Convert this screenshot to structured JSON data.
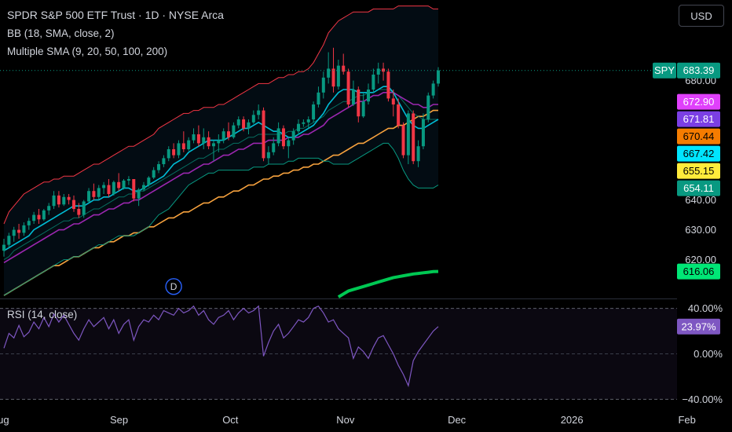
{
  "header": {
    "title": "SPDR S&P 500 ETF Trust · 1D · NYSE Arca",
    "bb_legend": "BB (18, SMA, close, 2)",
    "sma_legend": "Multiple SMA (9, 20, 50, 100, 200)",
    "rsi_legend": "RSI (14, close)",
    "currency": "USD"
  },
  "colors": {
    "up": "#089981",
    "down": "#f23645",
    "bb_band": "#f23645",
    "bb_basis": "#089981",
    "sma9": "#00bcd4",
    "sma20": "#9c27b0",
    "sma50": "#f7a23e",
    "sma100": "#089981",
    "sma200": "#00c853",
    "rsi": "#7e57c2"
  },
  "chart_data": {
    "type": "candlestick",
    "symbol": "SPY",
    "price_axis": {
      "range": [
        607,
        707
      ],
      "ticks": [
        680,
        640,
        630,
        620
      ],
      "tick_labels": [
        "680.00",
        "640.00",
        "630.00",
        "620.00"
      ]
    },
    "time_axis": {
      "labels": [
        "Aug",
        "Sep",
        "Oct",
        "Nov",
        "Dec",
        "2026",
        "Feb"
      ],
      "label_days": [
        0,
        31,
        61,
        92,
        122,
        153,
        184
      ],
      "last_candle_day": 117
    },
    "badges": [
      {
        "label": "SPY",
        "value": "683.39",
        "price": 683.39,
        "color": "#089981"
      },
      {
        "label": "",
        "value": "672.90",
        "price": 672.9,
        "color": "#e040fb"
      },
      {
        "label": "",
        "value": "671.81",
        "price": 671.81,
        "color": "#7b3fe4"
      },
      {
        "label": "",
        "value": "670.44",
        "price": 670.44,
        "color": "#f57c00"
      },
      {
        "label": "",
        "value": "667.42",
        "price": 667.42,
        "color": "#00e5ff"
      },
      {
        "label": "",
        "value": "655.15",
        "price": 655.15,
        "color": "#ffeb3b"
      },
      {
        "label": "",
        "value": "654.11",
        "price": 654.11,
        "color": "#089981"
      },
      {
        "label": "",
        "value": "616.06",
        "price": 616.06,
        "color": "#00e676"
      }
    ],
    "candles": [
      [
        623.0,
        627.0,
        621.0,
        625.0
      ],
      [
        625.0,
        629.0,
        624.0,
        628.0
      ],
      [
        628.0,
        631.0,
        626.0,
        630.0
      ],
      [
        630.0,
        632.0,
        627.0,
        629.0
      ],
      [
        629.0,
        632.5,
        628.0,
        631.5
      ],
      [
        631.5,
        634.0,
        630.0,
        633.0
      ],
      [
        633.0,
        636.0,
        632.0,
        635.0
      ],
      [
        635.0,
        637.0,
        632.0,
        633.5
      ],
      [
        633.5,
        637.0,
        633.0,
        636.5
      ],
      [
        636.5,
        639.0,
        635.0,
        638.0
      ],
      [
        638.0,
        643.0,
        637.0,
        641.5
      ],
      [
        641.5,
        643.0,
        637.5,
        638.5
      ],
      [
        638.5,
        642.0,
        638.0,
        641.0
      ],
      [
        641.0,
        642.0,
        638.5,
        640.0
      ],
      [
        640.0,
        641.5,
        636.0,
        637.0
      ],
      [
        637.0,
        639.0,
        634.0,
        635.0
      ],
      [
        635.0,
        640.0,
        634.0,
        639.5
      ],
      [
        639.5,
        644.0,
        639.0,
        643.0
      ],
      [
        643.0,
        645.5,
        640.0,
        641.0
      ],
      [
        641.0,
        645.0,
        640.0,
        644.0
      ],
      [
        644.0,
        646.0,
        642.0,
        645.0
      ],
      [
        645.0,
        647.0,
        641.0,
        642.0
      ],
      [
        642.0,
        646.5,
        641.5,
        646.0
      ],
      [
        646.0,
        649.0,
        643.0,
        644.0
      ],
      [
        644.0,
        647.0,
        643.5,
        646.5
      ],
      [
        646.5,
        648.0,
        645.0,
        647.0
      ],
      [
        647.0,
        647.0,
        639.5,
        640.5
      ],
      [
        640.5,
        644.0,
        638.0,
        643.5
      ],
      [
        643.5,
        646.0,
        643.0,
        645.0
      ],
      [
        645.0,
        648.0,
        644.5,
        647.5
      ],
      [
        647.5,
        651.0,
        647.0,
        650.0
      ],
      [
        650.0,
        653.0,
        649.0,
        652.0
      ],
      [
        652.0,
        655.0,
        651.0,
        654.0
      ],
      [
        654.0,
        658.0,
        653.0,
        657.0
      ],
      [
        657.0,
        659.0,
        654.0,
        655.0
      ],
      [
        655.0,
        660.0,
        654.0,
        659.0
      ],
      [
        659.0,
        663.0,
        656.0,
        657.0
      ],
      [
        657.0,
        661.0,
        656.5,
        660.0
      ],
      [
        660.0,
        664.0,
        659.0,
        662.0
      ],
      [
        662.0,
        665.0,
        658.0,
        659.0
      ],
      [
        659.0,
        664.0,
        657.0,
        661.0
      ],
      [
        661.0,
        663.0,
        657.0,
        658.0
      ],
      [
        658.0,
        660.0,
        653.0,
        659.0
      ],
      [
        659.0,
        662.0,
        656.0,
        660.0
      ],
      [
        660.0,
        664.0,
        659.0,
        663.0
      ],
      [
        663.0,
        666.0,
        660.0,
        661.0
      ],
      [
        661.0,
        666.0,
        660.5,
        665.0
      ],
      [
        665.0,
        668.0,
        664.0,
        667.0
      ],
      [
        667.0,
        668.0,
        663.0,
        664.0
      ],
      [
        664.0,
        667.0,
        662.0,
        666.0
      ],
      [
        666.0,
        670.0,
        665.5,
        668.5
      ],
      [
        668.5,
        672.0,
        667.0,
        670.0
      ],
      [
        670.0,
        671.0,
        653.0,
        654.0
      ],
      [
        654.0,
        658.0,
        652.0,
        656.0
      ],
      [
        656.0,
        661.0,
        655.0,
        659.0
      ],
      [
        659.0,
        666.0,
        658.0,
        664.0
      ],
      [
        664.0,
        665.0,
        657.0,
        658.0
      ],
      [
        658.0,
        661.0,
        654.0,
        660.0
      ],
      [
        660.0,
        664.0,
        658.5,
        663.0
      ],
      [
        663.0,
        667.0,
        662.0,
        665.5
      ],
      [
        665.5,
        667.0,
        664.5,
        666.0
      ],
      [
        666.0,
        668.0,
        664.0,
        667.0
      ],
      [
        667.0,
        673.0,
        666.0,
        672.0
      ],
      [
        672.0,
        678.0,
        671.0,
        676.0
      ],
      [
        676.0,
        683.0,
        674.0,
        681.0
      ],
      [
        681.0,
        689.5,
        679.0,
        684.0
      ],
      [
        684.0,
        691.0,
        676.0,
        678.0
      ],
      [
        678.0,
        687.0,
        677.0,
        685.0
      ],
      [
        685.0,
        689.0,
        682.0,
        683.0
      ],
      [
        683.0,
        684.0,
        671.0,
        672.0
      ],
      [
        672.0,
        680.0,
        671.5,
        677.0
      ],
      [
        677.0,
        678.0,
        666.0,
        668.0
      ],
      [
        668.0,
        676.0,
        667.5,
        673.0
      ],
      [
        673.0,
        679.0,
        672.0,
        677.0
      ],
      [
        677.0,
        684.0,
        676.0,
        682.0
      ],
      [
        682.0,
        686.0,
        679.0,
        684.0
      ],
      [
        684.0,
        686.0,
        680.0,
        683.0
      ],
      [
        683.0,
        684.0,
        673.0,
        674.0
      ],
      [
        674.0,
        677.0,
        668.0,
        672.0
      ],
      [
        672.0,
        674.0,
        664.0,
        665.0
      ],
      [
        665.0,
        666.0,
        654.0,
        655.0
      ],
      [
        655.0,
        670.0,
        652.0,
        669.0
      ],
      [
        669.0,
        670.0,
        652.0,
        653.0
      ],
      [
        653.0,
        660.0,
        651.0,
        658.0
      ],
      [
        658.0,
        669.0,
        657.0,
        667.0
      ],
      [
        667.0,
        676.0,
        666.0,
        675.0
      ],
      [
        675.0,
        680.0,
        674.0,
        679.0
      ],
      [
        679.0,
        684.5,
        678.0,
        683.4
      ]
    ],
    "overlays": {
      "bb_upper": [
        632,
        636,
        638,
        640,
        642,
        643,
        644,
        645,
        646,
        646,
        647,
        647,
        648,
        648,
        648,
        649,
        650,
        651,
        652,
        652,
        653,
        654,
        655,
        656,
        657,
        658,
        658,
        659,
        660,
        661,
        662,
        664,
        665,
        666,
        667,
        668,
        669,
        669,
        670,
        670,
        671,
        671,
        671,
        672,
        672,
        673,
        674,
        675,
        676,
        677,
        678,
        679,
        679,
        679,
        680,
        681,
        681,
        682,
        682,
        683,
        683,
        684,
        686,
        689,
        692,
        696,
        698,
        700,
        701,
        702,
        703,
        703,
        703,
        703,
        704,
        704,
        704,
        704,
        704,
        705,
        705,
        705,
        705,
        705,
        705,
        705,
        704,
        704
      ],
      "bb_basis": [
        620,
        621,
        623,
        624,
        625,
        626,
        627,
        628,
        629,
        630,
        631,
        632,
        633,
        633,
        634,
        634,
        635,
        636,
        637,
        637,
        638,
        639,
        640,
        641,
        641,
        642,
        642,
        643,
        643,
        644,
        645,
        646,
        647,
        648,
        649,
        650,
        651,
        652,
        653,
        654,
        654,
        655,
        656,
        657,
        657,
        658,
        659,
        659,
        660,
        661,
        661,
        662,
        662,
        662,
        662,
        662,
        662,
        663,
        663,
        664,
        664,
        665,
        666,
        667,
        668,
        670,
        671,
        672,
        673,
        673,
        674,
        675,
        675,
        676,
        676,
        677,
        677,
        677,
        676,
        675,
        673,
        671,
        669,
        668,
        667,
        667,
        667,
        667
      ],
      "bb_lower": [
        608,
        609,
        610,
        611,
        612,
        613,
        614,
        615,
        616,
        617,
        618,
        619,
        620,
        620,
        621,
        621,
        622,
        623,
        624,
        625,
        625,
        626,
        627,
        628,
        628,
        628,
        628,
        629,
        630,
        631,
        633,
        635,
        636,
        637,
        639,
        641,
        643,
        645,
        646,
        647,
        648,
        649,
        649,
        650,
        650,
        650,
        650,
        650,
        650,
        650,
        651,
        651,
        651,
        652,
        652,
        652,
        652,
        653,
        653,
        654,
        654,
        654,
        654,
        654,
        653,
        653,
        652,
        652,
        652,
        652,
        653,
        654,
        655,
        656,
        657,
        658,
        659,
        659,
        657,
        654,
        650,
        647,
        645,
        644,
        644,
        644,
        644,
        645
      ],
      "sma9": [
        623,
        624,
        625,
        626,
        627,
        628,
        630,
        631,
        632,
        633,
        634,
        635,
        636,
        637,
        638,
        638,
        638,
        639,
        640,
        640,
        641,
        641,
        642,
        643,
        644,
        644,
        643,
        643,
        644,
        645,
        646,
        647,
        648,
        650,
        652,
        653,
        654,
        656,
        657,
        658,
        659,
        660,
        660,
        660,
        660,
        661,
        662,
        663,
        664,
        664,
        665,
        666,
        665,
        664,
        663,
        663,
        662,
        661,
        661,
        662,
        663,
        664,
        665,
        667,
        669,
        672,
        674,
        676,
        677,
        677,
        677,
        676,
        676,
        676,
        676,
        677,
        678,
        678,
        676,
        673,
        670,
        667,
        665,
        664,
        664,
        665,
        666,
        667
      ],
      "sma20": [
        619,
        620,
        621,
        622,
        623,
        624,
        625,
        626,
        627,
        628,
        629,
        630,
        630,
        631,
        632,
        632,
        633,
        634,
        635,
        635,
        636,
        637,
        637,
        638,
        639,
        639,
        640,
        640,
        641,
        642,
        643,
        644,
        645,
        646,
        647,
        648,
        649,
        649,
        650,
        651,
        652,
        652,
        653,
        654,
        655,
        655,
        656,
        657,
        657,
        658,
        659,
        659,
        659,
        660,
        660,
        660,
        660,
        661,
        661,
        661,
        662,
        662,
        663,
        664,
        665,
        667,
        668,
        669,
        670,
        671,
        672,
        673,
        673,
        674,
        675,
        675,
        676,
        676,
        676,
        675,
        674,
        673,
        672,
        672,
        671,
        671,
        672,
        672
      ],
      "sma50": [
        608,
        609,
        610,
        611,
        612,
        613,
        614,
        615,
        616,
        617,
        618,
        618,
        619,
        620,
        621,
        621,
        622,
        623,
        624,
        624,
        625,
        626,
        626,
        627,
        628,
        628,
        629,
        629,
        630,
        631,
        631,
        632,
        633,
        634,
        634,
        635,
        636,
        636,
        637,
        638,
        639,
        639,
        640,
        641,
        641,
        642,
        643,
        643,
        644,
        645,
        645,
        646,
        647,
        647,
        648,
        648,
        649,
        649,
        650,
        650,
        651,
        651,
        652,
        652,
        653,
        654,
        655,
        655,
        656,
        657,
        658,
        659,
        659,
        660,
        661,
        662,
        663,
        664,
        664,
        665,
        665,
        666,
        667,
        668,
        668,
        669,
        670,
        670
      ],
      "sma200": [
        null,
        null,
        null,
        null,
        null,
        null,
        null,
        null,
        null,
        null,
        null,
        null,
        null,
        null,
        null,
        null,
        null,
        null,
        null,
        null,
        null,
        null,
        null,
        null,
        null,
        null,
        null,
        null,
        null,
        null,
        null,
        null,
        null,
        null,
        null,
        null,
        null,
        null,
        null,
        null,
        null,
        null,
        null,
        null,
        null,
        null,
        null,
        null,
        null,
        null,
        null,
        null,
        null,
        null,
        null,
        null,
        null,
        null,
        null,
        null,
        null,
        null,
        null,
        null,
        null,
        null,
        null,
        607.5,
        608.5,
        609.5,
        610,
        610.5,
        611,
        611.5,
        612,
        612.5,
        613,
        613.5,
        614,
        614.3,
        614.6,
        614.9,
        615.2,
        615.4,
        615.6,
        615.8,
        616,
        616.06
      ]
    },
    "marker": {
      "label": "D",
      "index": 34,
      "price": 611
    },
    "rsi": {
      "range": [
        -48,
        48
      ],
      "ticks": [
        40,
        0,
        -40
      ],
      "tick_labels": [
        "40.00%",
        "0.00%",
        "−40.00%"
      ],
      "badge": "23.97%",
      "current": 23.97,
      "values": [
        5,
        18,
        14,
        25,
        15,
        19,
        28,
        22,
        32,
        24,
        35,
        28,
        34,
        26,
        18,
        12,
        22,
        30,
        24,
        28,
        32,
        22,
        30,
        18,
        26,
        30,
        12,
        24,
        30,
        28,
        34,
        30,
        38,
        36,
        34,
        40,
        36,
        38,
        42,
        34,
        38,
        30,
        26,
        32,
        34,
        38,
        30,
        36,
        40,
        36,
        38,
        42,
        -2,
        10,
        20,
        26,
        14,
        18,
        24,
        30,
        28,
        32,
        40,
        42,
        36,
        28,
        30,
        22,
        18,
        14,
        -4,
        6,
        2,
        -4,
        6,
        14,
        16,
        8,
        0,
        -10,
        -18,
        -28,
        -6,
        2,
        8,
        14,
        20,
        24
      ]
    }
  }
}
